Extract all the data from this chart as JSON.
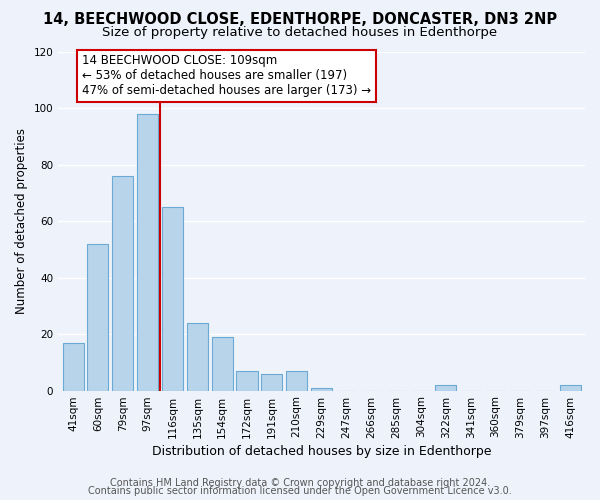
{
  "title": "14, BEECHWOOD CLOSE, EDENTHORPE, DONCASTER, DN3 2NP",
  "subtitle": "Size of property relative to detached houses in Edenthorpe",
  "xlabel": "Distribution of detached houses by size in Edenthorpe",
  "ylabel": "Number of detached properties",
  "bar_labels": [
    "41sqm",
    "60sqm",
    "79sqm",
    "97sqm",
    "116sqm",
    "135sqm",
    "154sqm",
    "172sqm",
    "191sqm",
    "210sqm",
    "229sqm",
    "247sqm",
    "266sqm",
    "285sqm",
    "304sqm",
    "322sqm",
    "341sqm",
    "360sqm",
    "379sqm",
    "397sqm",
    "416sqm"
  ],
  "bar_values": [
    17,
    52,
    76,
    98,
    65,
    24,
    19,
    7,
    6,
    7,
    1,
    0,
    0,
    0,
    0,
    2,
    0,
    0,
    0,
    0,
    2
  ],
  "bar_color": "#b8d4ea",
  "bar_edge_color": "#6aaad4",
  "highlight_line_color": "#cc0000",
  "annotation_line1": "14 BEECHWOOD CLOSE: 109sqm",
  "annotation_line2": "← 53% of detached houses are smaller (197)",
  "annotation_line3": "47% of semi-detached houses are larger (173) →",
  "ylim": [
    0,
    120
  ],
  "yticks": [
    0,
    20,
    40,
    60,
    80,
    100,
    120
  ],
  "footer_line1": "Contains HM Land Registry data © Crown copyright and database right 2024.",
  "footer_line2": "Contains public sector information licensed under the Open Government Licence v3.0.",
  "background_color": "#eef2fb",
  "grid_color": "#ffffff",
  "title_fontsize": 10.5,
  "subtitle_fontsize": 9.5,
  "xlabel_fontsize": 9,
  "ylabel_fontsize": 8.5,
  "tick_fontsize": 7.5,
  "annotation_fontsize": 8.5,
  "footer_fontsize": 7
}
